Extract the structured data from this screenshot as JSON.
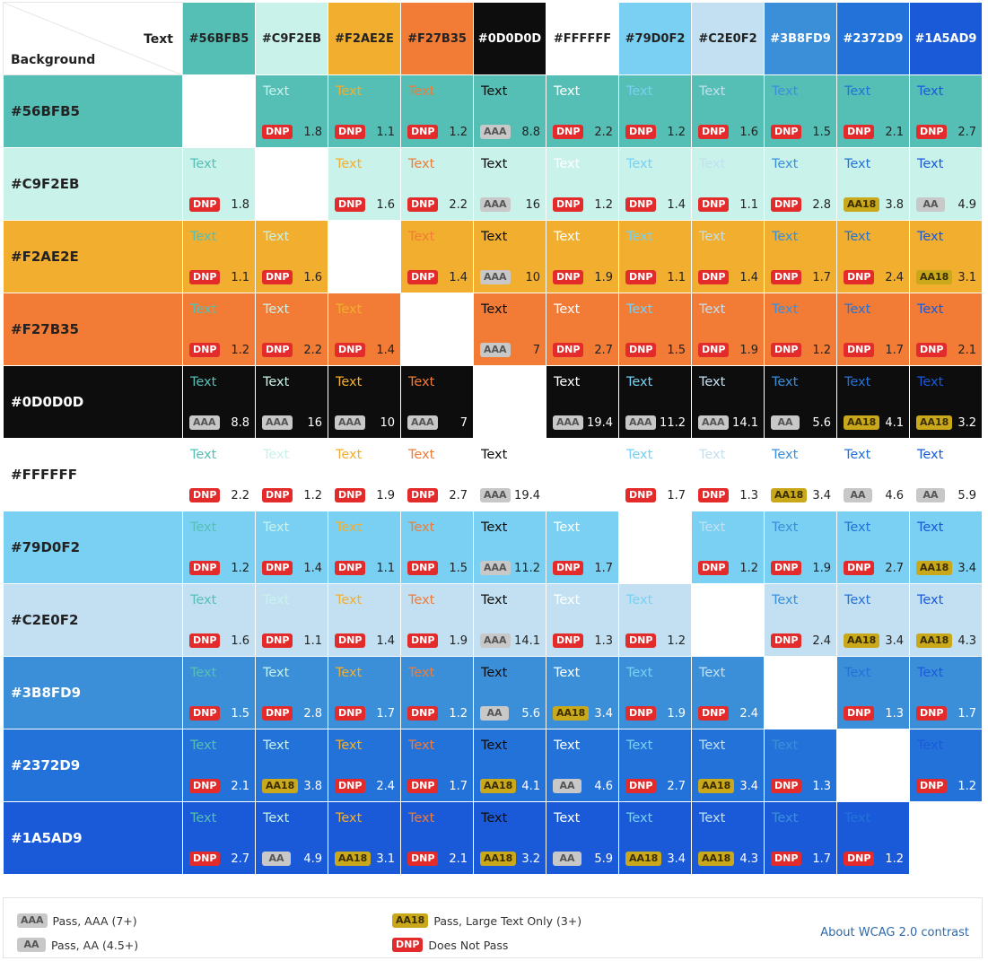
{
  "header": {
    "text_label": "Text",
    "background_label": "Background"
  },
  "colors": [
    {
      "hex": "#56BFB5",
      "label": "#56BFB5"
    },
    {
      "hex": "#C9F2EB",
      "label": "#C9F2EB"
    },
    {
      "hex": "#F2AE2E",
      "label": "#F2AE2E"
    },
    {
      "hex": "#F27B35",
      "label": "#F27B35"
    },
    {
      "hex": "#0D0D0D",
      "label": "#0D0D0D"
    },
    {
      "hex": "#FFFFFF",
      "label": "#FFFFFF"
    },
    {
      "hex": "#79D0F2",
      "label": "#79D0F2"
    },
    {
      "hex": "#C2E0F2",
      "label": "#C2E0F2"
    },
    {
      "hex": "#3B8FD9",
      "label": "#3B8FD9"
    },
    {
      "hex": "#2372D9",
      "label": "#2372D9"
    },
    {
      "hex": "#1A5AD9",
      "label": "#1A5AD9"
    }
  ],
  "header_text_colors": [
    "#222222",
    "#222222",
    "#222222",
    "#222222",
    "#ffffff",
    "#222222",
    "#222222",
    "#222222",
    "#ffffff",
    "#ffffff",
    "#ffffff"
  ],
  "row_label_colors": [
    "#222222",
    "#222222",
    "#222222",
    "#222222",
    "#ffffff",
    "#222222",
    "#222222",
    "#222222",
    "#ffffff",
    "#ffffff",
    "#ffffff"
  ],
  "sample_text": "Text",
  "rows": [
    [
      "",
      "DNP|1.8",
      "DNP|1.1",
      "DNP|1.2",
      "AAA|8.8",
      "DNP|2.2",
      "DNP|1.2",
      "DNP|1.6",
      "DNP|1.5",
      "DNP|2.1",
      "DNP|2.7"
    ],
    [
      "DNP|1.8",
      "",
      "DNP|1.6",
      "DNP|2.2",
      "AAA|16",
      "DNP|1.2",
      "DNP|1.4",
      "DNP|1.1",
      "DNP|2.8",
      "AA18|3.8",
      "AA|4.9"
    ],
    [
      "DNP|1.1",
      "DNP|1.6",
      "",
      "DNP|1.4",
      "AAA|10",
      "DNP|1.9",
      "DNP|1.1",
      "DNP|1.4",
      "DNP|1.7",
      "DNP|2.4",
      "AA18|3.1"
    ],
    [
      "DNP|1.2",
      "DNP|2.2",
      "DNP|1.4",
      "",
      "AAA|7",
      "DNP|2.7",
      "DNP|1.5",
      "DNP|1.9",
      "DNP|1.2",
      "DNP|1.7",
      "DNP|2.1"
    ],
    [
      "AAA|8.8",
      "AAA|16",
      "AAA|10",
      "AAA|7",
      "",
      "AAA|19.4",
      "AAA|11.2",
      "AAA|14.1",
      "AA|5.6",
      "AA18|4.1",
      "AA18|3.2"
    ],
    [
      "DNP|2.2",
      "DNP|1.2",
      "DNP|1.9",
      "DNP|2.7",
      "AAA|19.4",
      "",
      "DNP|1.7",
      "DNP|1.3",
      "AA18|3.4",
      "AA|4.6",
      "AA|5.9"
    ],
    [
      "DNP|1.2",
      "DNP|1.4",
      "DNP|1.1",
      "DNP|1.5",
      "AAA|11.2",
      "DNP|1.7",
      "",
      "DNP|1.2",
      "DNP|1.9",
      "DNP|2.7",
      "AA18|3.4"
    ],
    [
      "DNP|1.6",
      "DNP|1.1",
      "DNP|1.4",
      "DNP|1.9",
      "AAA|14.1",
      "DNP|1.3",
      "DNP|1.2",
      "",
      "DNP|2.4",
      "AA18|3.4",
      "AA18|4.3"
    ],
    [
      "DNP|1.5",
      "DNP|2.8",
      "DNP|1.7",
      "DNP|1.2",
      "AA|5.6",
      "AA18|3.4",
      "DNP|1.9",
      "DNP|2.4",
      "",
      "DNP|1.3",
      "DNP|1.7"
    ],
    [
      "DNP|2.1",
      "AA18|3.8",
      "DNP|2.4",
      "DNP|1.7",
      "AA18|4.1",
      "AA|4.6",
      "DNP|2.7",
      "AA18|3.4",
      "DNP|1.3",
      "",
      "DNP|1.2"
    ],
    [
      "DNP|2.7",
      "AA|4.9",
      "AA18|3.1",
      "DNP|2.1",
      "AA18|3.2",
      "AA|5.9",
      "AA18|3.4",
      "AA18|4.3",
      "DNP|1.7",
      "DNP|1.2",
      ""
    ]
  ],
  "legend": {
    "aaa": {
      "badge": "AAA",
      "desc": "Pass, AAA (7+)"
    },
    "aa": {
      "badge": "AA",
      "desc": "Pass, AA (4.5+)"
    },
    "aa18": {
      "badge": "AA18",
      "desc": "Pass, Large Text Only (3+)"
    },
    "dnp": {
      "badge": "DNP",
      "desc": "Does Not Pass"
    },
    "about_link": "About WCAG 2.0 contrast"
  }
}
